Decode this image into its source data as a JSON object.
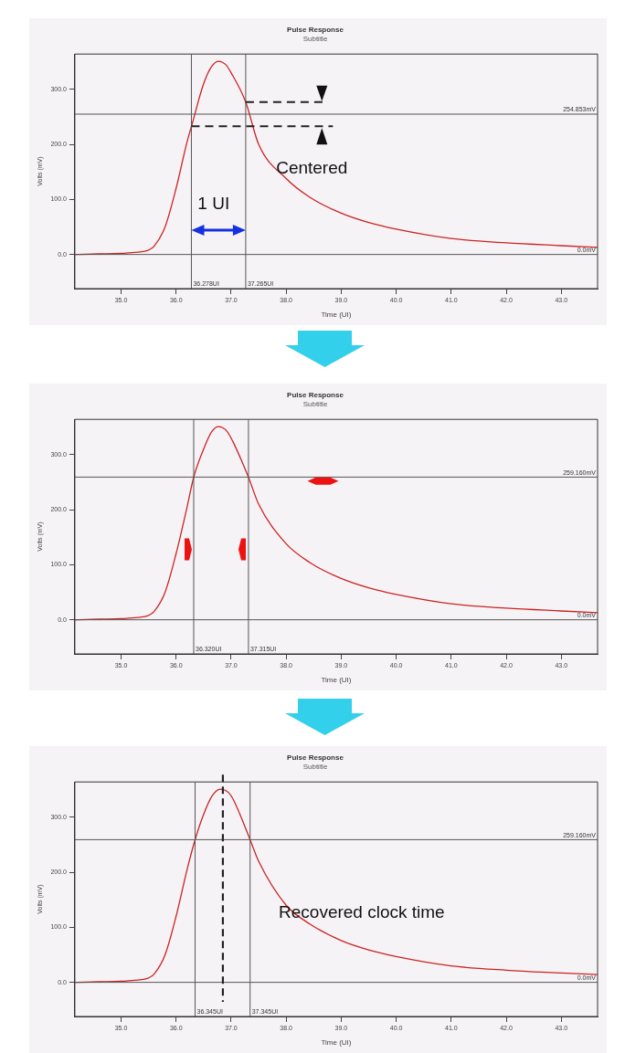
{
  "chart_data": [
    {
      "type": "line",
      "title": "Pulse Response",
      "subtitle": "Subtitle",
      "xlabel": "Time (UI)",
      "ylabel": "Volts (mV)",
      "x": [
        34.16,
        34.6,
        35.0,
        35.3,
        35.5,
        35.6,
        35.8,
        36.0,
        36.2,
        36.278,
        36.5,
        36.65,
        36.77,
        36.9,
        37.0,
        37.265,
        37.5,
        38.0,
        38.43,
        39.0,
        39.5,
        40.0,
        41.0,
        42.0,
        43.0,
        43.66
      ],
      "series": [
        {
          "color": "#cc2222",
          "values": [
            0,
            1,
            2,
            4,
            8,
            15,
            50,
            120,
            205,
            232,
            310,
            342,
            351,
            345,
            330,
            277,
            200,
            138,
            104,
            75,
            58,
            46,
            29,
            21,
            16,
            13
          ]
        }
      ],
      "xlim": [
        34.16,
        43.66
      ],
      "ylim": [
        -62,
        364
      ],
      "xticks": [
        {
          "value": 35,
          "label": "35.0"
        },
        {
          "value": 36,
          "label": "36.0"
        },
        {
          "value": 37,
          "label": "37.0"
        },
        {
          "value": 38,
          "label": "38.0"
        },
        {
          "value": 39,
          "label": "39.0"
        },
        {
          "value": 40,
          "label": "40.0"
        },
        {
          "value": 41,
          "label": "41.0"
        },
        {
          "value": 42,
          "label": "42.0"
        },
        {
          "value": 43,
          "label": "43.0"
        }
      ],
      "yticks": [
        {
          "value": 0,
          "label": "0.0"
        },
        {
          "value": 100,
          "label": "100.0"
        },
        {
          "value": 200,
          "label": "200.0"
        },
        {
          "value": 300,
          "label": "300.0"
        }
      ],
      "ref_lines": [
        {
          "axis": "y",
          "value": 254.853,
          "label": "254.853mV"
        },
        {
          "axis": "y",
          "value": 0,
          "label": "0.0mV"
        },
        {
          "axis": "x",
          "value": 36.278,
          "label": "36.278UI"
        },
        {
          "axis": "x",
          "value": 37.265,
          "label": "37.265UI"
        }
      ],
      "annotations": [
        "Centered",
        "1 UI"
      ],
      "grid": false,
      "legend": false,
      "marker": "none",
      "line_style": "solid"
    },
    {
      "type": "line",
      "title": "Pulse Response",
      "subtitle": "Subtitle",
      "xlabel": "Time (UI)",
      "ylabel": "Volts (mV)",
      "x": [
        34.16,
        34.6,
        35.0,
        35.3,
        35.5,
        35.6,
        35.8,
        36.0,
        36.2,
        36.32,
        36.5,
        36.65,
        36.77,
        36.9,
        37.0,
        37.315,
        37.5,
        38.0,
        38.43,
        39.0,
        39.5,
        40.0,
        41.0,
        42.0,
        43.0,
        43.66
      ],
      "series": [
        {
          "color": "#cc2222",
          "values": [
            0,
            1,
            2,
            4,
            8,
            15,
            50,
            120,
            205,
            259,
            310,
            342,
            351,
            345,
            330,
            259,
            210,
            138,
            104,
            75,
            58,
            46,
            29,
            21,
            16,
            13
          ]
        }
      ],
      "xlim": [
        34.16,
        43.66
      ],
      "ylim": [
        -62,
        364
      ],
      "xticks": [
        {
          "value": 35,
          "label": "35.0"
        },
        {
          "value": 36,
          "label": "36.0"
        },
        {
          "value": 37,
          "label": "37.0"
        },
        {
          "value": 38,
          "label": "38.0"
        },
        {
          "value": 39,
          "label": "39.0"
        },
        {
          "value": 40,
          "label": "40.0"
        },
        {
          "value": 41,
          "label": "41.0"
        },
        {
          "value": 42,
          "label": "42.0"
        },
        {
          "value": 43,
          "label": "43.0"
        }
      ],
      "yticks": [
        {
          "value": 0,
          "label": "0.0"
        },
        {
          "value": 100,
          "label": "100.0"
        },
        {
          "value": 200,
          "label": "200.0"
        },
        {
          "value": 300,
          "label": "300.0"
        }
      ],
      "ref_lines": [
        {
          "axis": "y",
          "value": 259.16,
          "label": "259.160mV"
        },
        {
          "axis": "y",
          "value": 0,
          "label": "0.0mV"
        },
        {
          "axis": "x",
          "value": 36.32,
          "label": "36.320UI"
        },
        {
          "axis": "x",
          "value": 37.315,
          "label": "37.315UI"
        }
      ],
      "grid": false,
      "legend": false,
      "marker": "none",
      "line_style": "solid"
    },
    {
      "type": "line",
      "title": "Pulse Response",
      "subtitle": "Subtitle",
      "xlabel": "Time (UI)",
      "ylabel": "Volts (mV)",
      "x": [
        34.16,
        34.6,
        35.0,
        35.3,
        35.5,
        35.6,
        35.8,
        36.0,
        36.2,
        36.345,
        36.5,
        36.65,
        36.8,
        36.95,
        37.05,
        37.345,
        37.5,
        38.0,
        38.43,
        39.0,
        39.5,
        40.0,
        41.0,
        42.0,
        43.0,
        43.66
      ],
      "series": [
        {
          "color": "#cc2222",
          "values": [
            0,
            1,
            2,
            4,
            8,
            15,
            50,
            120,
            205,
            259,
            305,
            338,
            351,
            345,
            330,
            259,
            220,
            140,
            106,
            76,
            59,
            47,
            30,
            22,
            17,
            14
          ]
        }
      ],
      "xlim": [
        34.16,
        43.66
      ],
      "ylim": [
        -62,
        364
      ],
      "xticks": [
        {
          "value": 35,
          "label": "35.0"
        },
        {
          "value": 36,
          "label": "36.0"
        },
        {
          "value": 37,
          "label": "37.0"
        },
        {
          "value": 38,
          "label": "38.0"
        },
        {
          "value": 39,
          "label": "39.0"
        },
        {
          "value": 40,
          "label": "40.0"
        },
        {
          "value": 41,
          "label": "41.0"
        },
        {
          "value": 42,
          "label": "42.0"
        },
        {
          "value": 43,
          "label": "43.0"
        }
      ],
      "yticks": [
        {
          "value": 0,
          "label": "0.0"
        },
        {
          "value": 100,
          "label": "100.0"
        },
        {
          "value": 200,
          "label": "200.0"
        },
        {
          "value": 300,
          "label": "300.0"
        }
      ],
      "ref_lines": [
        {
          "axis": "y",
          "value": 259.16,
          "label": "259.160mV"
        },
        {
          "axis": "y",
          "value": 0,
          "label": "0.0mV"
        },
        {
          "axis": "x",
          "value": 36.345,
          "label": "36.345UI"
        },
        {
          "axis": "x",
          "value": 37.345,
          "label": "37.345UI"
        },
        {
          "axis": "x",
          "value": 36.85,
          "color": "#222222",
          "line_style": "dashed"
        }
      ],
      "annotations": [
        "Recovered clock time"
      ],
      "grid": false,
      "legend": false,
      "marker": "none",
      "line_style": "solid"
    }
  ]
}
